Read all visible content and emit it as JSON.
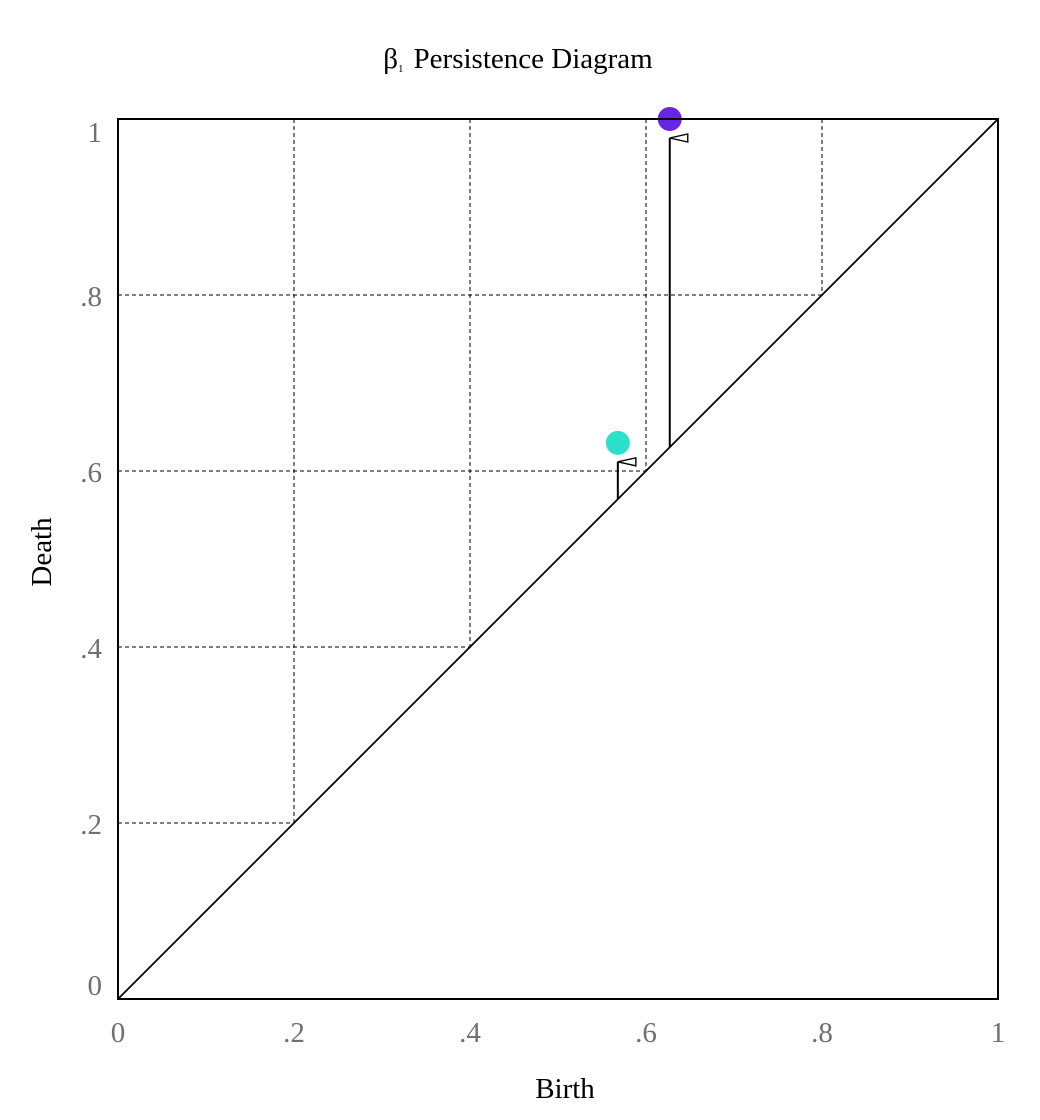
{
  "chart_data": {
    "type": "scatter",
    "title_symbol": "β",
    "title_subscript": "1",
    "title_text": "Persistence Diagram",
    "xlabel": "Birth",
    "ylabel": "Death",
    "xlim": [
      0,
      1
    ],
    "ylim": [
      0,
      1
    ],
    "xticks": [
      0,
      0.2,
      0.4,
      0.6,
      0.8,
      1
    ],
    "xtick_labels": [
      "0",
      ".2",
      ".4",
      ".6",
      ".8",
      "1"
    ],
    "yticks": [
      0,
      0.2,
      0.4,
      0.6,
      0.8,
      1
    ],
    "ytick_labels": [
      "0",
      ".2",
      ".4",
      ".6",
      ".8",
      "1"
    ],
    "grid": "dashed, only above diagonal",
    "diagonal": true,
    "points": [
      {
        "birth": 0.568,
        "death": 0.632,
        "color": "#2de0cc"
      },
      {
        "birth": 0.627,
        "death": 1.0,
        "color": "#6a24e6"
      }
    ],
    "tick_color": "#707070"
  }
}
